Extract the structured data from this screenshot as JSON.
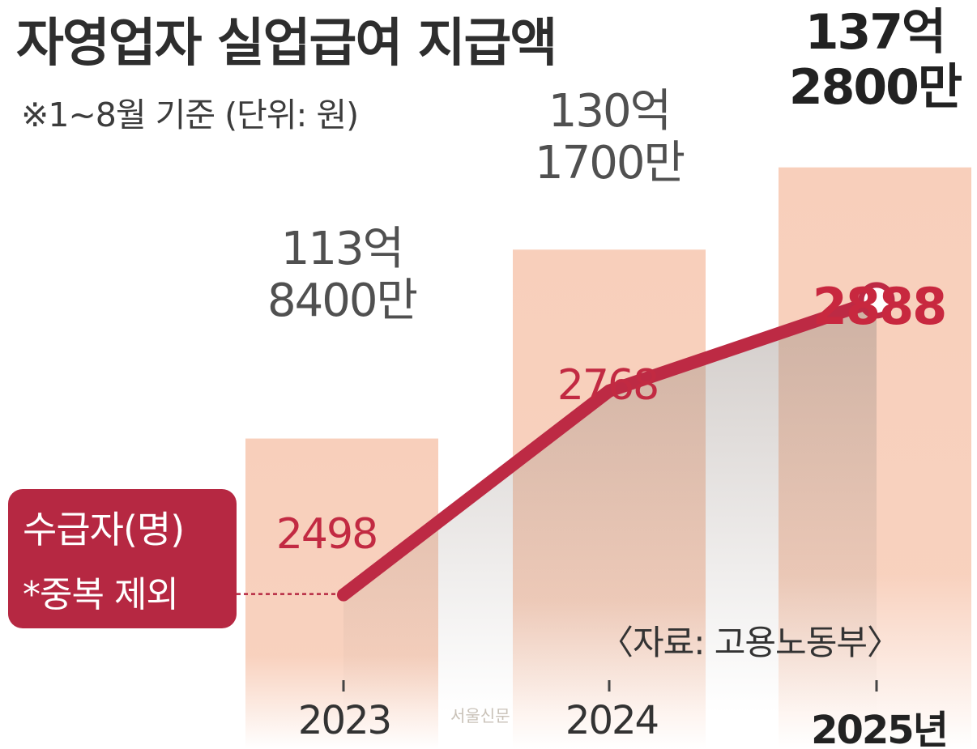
{
  "title": "자영업자 실업급여 지급액",
  "subtitle": "※1~8월 기준 (단위: 원)",
  "source": "〈자료: 고용노동부〉",
  "watermark": "서울신문",
  "legend": {
    "title": "수급자(명)",
    "note": "*중복 제외"
  },
  "colors": {
    "bar": "#f8cfbb",
    "line": "#bd2a44",
    "legend_bg": "#b62842"
  },
  "chart_data": {
    "type": "bar",
    "categories": [
      "2023",
      "2024",
      "2025년"
    ],
    "series": [
      {
        "name": "지급액",
        "unit": "억원",
        "values": [
          113.84,
          130.17,
          137.28
        ],
        "labels": [
          {
            "line1": "113억",
            "line2": "8400만"
          },
          {
            "line1": "130억",
            "line2": "1700만"
          },
          {
            "line1": "137억",
            "line2": "2800만"
          }
        ]
      },
      {
        "name": "수급자(명)",
        "type": "line",
        "values": [
          2498,
          2768,
          2888
        ],
        "labels": [
          "2498",
          "2768",
          "2888"
        ]
      }
    ],
    "ylim_bars": [
      87,
      138.8
    ],
    "ylim_line": [
      2400,
      2950
    ],
    "xlabel": "",
    "ylabel": ""
  }
}
